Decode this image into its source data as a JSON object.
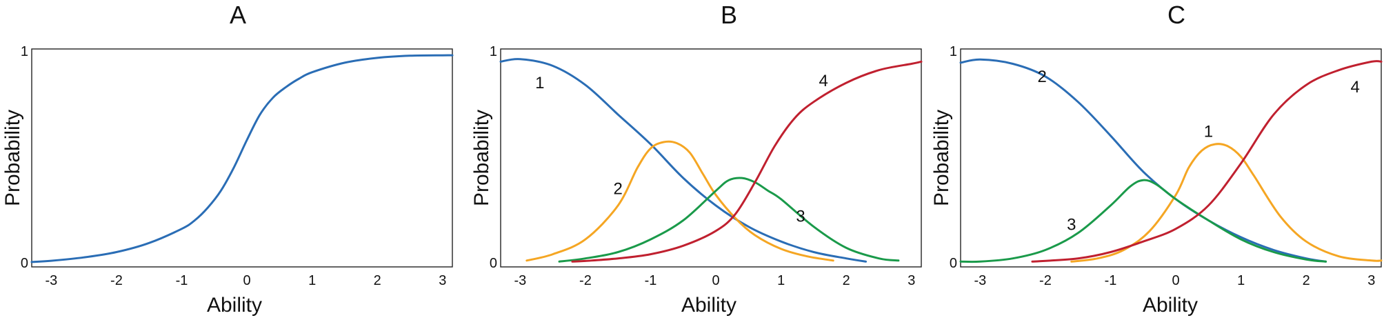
{
  "chart_data": [
    {
      "type": "line",
      "title": "A",
      "xlabel": "Ability",
      "ylabel": "Probability",
      "xlim": [
        -3.3,
        3.15
      ],
      "ylim": [
        -0.02,
        1.01
      ],
      "grid": false,
      "xticks": [
        "-3",
        "-2",
        "-1",
        "0",
        "1",
        "2",
        "3"
      ],
      "yticks": [
        "0",
        "1"
      ],
      "series": [
        {
          "color": "#2a6db5",
          "x": [
            -3.3,
            -3,
            -2.5,
            -2,
            -1.5,
            -1,
            -0.8,
            -0.6,
            -0.4,
            -0.2,
            0,
            0.2,
            0.4,
            0.6,
            0.8,
            1,
            1.5,
            2,
            2.5,
            3,
            3.15
          ],
          "y": [
            0.003,
            0.009,
            0.025,
            0.05,
            0.093,
            0.16,
            0.2,
            0.26,
            0.34,
            0.45,
            0.58,
            0.7,
            0.78,
            0.83,
            0.87,
            0.9,
            0.945,
            0.968,
            0.978,
            0.98,
            0.98
          ]
        }
      ],
      "annotations": []
    },
    {
      "type": "line",
      "title": "B",
      "xlabel": "Ability",
      "ylabel": "Probability",
      "xlim": [
        -3.3,
        3.15
      ],
      "ylim": [
        -0.02,
        1.01
      ],
      "grid": false,
      "xticks": [
        "-3",
        "-2",
        "-1",
        "0",
        "1",
        "2",
        "3"
      ],
      "yticks": [
        "0",
        "1"
      ],
      "series": [
        {
          "color": "#2a6db5",
          "x": [
            -3.3,
            -3,
            -2.5,
            -2,
            -1.5,
            -1,
            -0.5,
            0,
            0.5,
            1,
            1.5,
            2,
            2.3
          ],
          "y": [
            0.95,
            0.962,
            0.93,
            0.84,
            0.7,
            0.56,
            0.4,
            0.27,
            0.17,
            0.1,
            0.05,
            0.02,
            0.005
          ]
        },
        {
          "color": "#f5a623",
          "x": [
            -2.9,
            -2.5,
            -2,
            -1.5,
            -1.2,
            -1,
            -0.8,
            -0.6,
            -0.4,
            -0.2,
            0,
            0.3,
            0.6,
            1,
            1.4,
            1.8
          ],
          "y": [
            0.01,
            0.04,
            0.11,
            0.27,
            0.45,
            0.54,
            0.57,
            0.565,
            0.52,
            0.42,
            0.32,
            0.21,
            0.13,
            0.065,
            0.03,
            0.01
          ]
        },
        {
          "color": "#1a9a4a",
          "x": [
            -2.4,
            -2,
            -1.5,
            -1,
            -0.5,
            0,
            0.2,
            0.4,
            0.6,
            0.8,
            1,
            1.5,
            2,
            2.5,
            2.8
          ],
          "y": [
            0.005,
            0.02,
            0.05,
            0.11,
            0.2,
            0.34,
            0.39,
            0.4,
            0.38,
            0.34,
            0.3,
            0.17,
            0.07,
            0.02,
            0.01
          ]
        },
        {
          "color": "#c0202f",
          "x": [
            -2.2,
            -2,
            -1.5,
            -1,
            -0.5,
            0,
            0.3,
            0.6,
            0.9,
            1.2,
            1.5,
            2,
            2.5,
            3,
            3.15
          ],
          "y": [
            0.005,
            0.008,
            0.02,
            0.04,
            0.08,
            0.15,
            0.23,
            0.38,
            0.55,
            0.68,
            0.76,
            0.85,
            0.91,
            0.94,
            0.95
          ]
        }
      ],
      "annotations": [
        {
          "text": "1",
          "x": -2.7,
          "y": 0.85
        },
        {
          "text": "2",
          "x": -1.5,
          "y": 0.35
        },
        {
          "text": "3",
          "x": 1.3,
          "y": 0.22
        },
        {
          "text": "4",
          "x": 1.65,
          "y": 0.86
        }
      ]
    },
    {
      "type": "line",
      "title": "C",
      "xlabel": "Ability",
      "ylabel": "Probability",
      "xlim": [
        -3.3,
        3.15
      ],
      "ylim": [
        -0.02,
        1.01
      ],
      "grid": false,
      "xticks": [
        "-3",
        "-2",
        "-1",
        "0",
        "1",
        "2",
        "3"
      ],
      "yticks": [
        "0",
        "1"
      ],
      "series": [
        {
          "color": "#2a6db5",
          "x": [
            -3.3,
            -3,
            -2.5,
            -2,
            -1.5,
            -1,
            -0.5,
            0,
            0.5,
            1,
            1.5,
            2,
            2.3
          ],
          "y": [
            0.945,
            0.96,
            0.94,
            0.88,
            0.76,
            0.6,
            0.43,
            0.3,
            0.2,
            0.12,
            0.06,
            0.02,
            0.005
          ]
        },
        {
          "color": "#f5a623",
          "x": [
            -1.6,
            -1.2,
            -0.8,
            -0.4,
            0,
            0.2,
            0.4,
            0.6,
            0.8,
            1,
            1.2,
            1.6,
            2,
            2.5,
            3,
            3.15
          ],
          "y": [
            0.005,
            0.02,
            0.06,
            0.15,
            0.32,
            0.45,
            0.53,
            0.56,
            0.55,
            0.5,
            0.41,
            0.22,
            0.1,
            0.03,
            0.01,
            0.01
          ]
        },
        {
          "color": "#1a9a4a",
          "x": [
            -3.3,
            -3,
            -2.5,
            -2,
            -1.5,
            -1,
            -0.7,
            -0.5,
            -0.3,
            0,
            0.5,
            1,
            1.5,
            2,
            2.3
          ],
          "y": [
            0.005,
            0.005,
            0.02,
            0.06,
            0.14,
            0.27,
            0.36,
            0.39,
            0.37,
            0.3,
            0.2,
            0.11,
            0.05,
            0.015,
            0.005
          ]
        },
        {
          "color": "#c0202f",
          "x": [
            -2.2,
            -1.5,
            -1,
            -0.5,
            0,
            0.5,
            1,
            1.5,
            2,
            2.5,
            3,
            3.15
          ],
          "y": [
            0.005,
            0.02,
            0.05,
            0.1,
            0.16,
            0.27,
            0.47,
            0.7,
            0.84,
            0.91,
            0.95,
            0.95
          ]
        }
      ],
      "annotations": [
        {
          "text": "2",
          "x": -2.05,
          "y": 0.88
        },
        {
          "text": "1",
          "x": 0.5,
          "y": 0.62
        },
        {
          "text": "3",
          "x": -1.6,
          "y": 0.18
        },
        {
          "text": "4",
          "x": 2.75,
          "y": 0.83
        }
      ]
    }
  ]
}
